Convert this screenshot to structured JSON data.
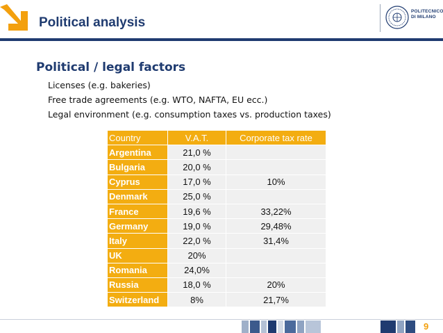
{
  "header": {
    "title": "Political analysis",
    "institution_line1": "POLITECNICO",
    "institution_line2": "DI MILANO"
  },
  "content": {
    "section_title": "Political / legal factors",
    "bullets": [
      "Licenses (e.g. bakeries)",
      "Free trade agreements (e.g. WTO, NAFTA, EU ecc.)",
      "Legal environment (e.g. consumption taxes vs. production taxes)"
    ]
  },
  "table": {
    "headers": [
      "Country",
      "V.A.T.",
      "Corporate tax rate"
    ],
    "rows": [
      {
        "country": "Argentina",
        "vat": "21,0 %",
        "corporate": ""
      },
      {
        "country": "Bulgaria",
        "vat": "20,0 %",
        "corporate": ""
      },
      {
        "country": "Cyprus",
        "vat": "17,0 %",
        "corporate": "10%"
      },
      {
        "country": "Denmark",
        "vat": "25,0 %",
        "corporate": ""
      },
      {
        "country": "France",
        "vat": "19,6 %",
        "corporate": "33,22%"
      },
      {
        "country": "Germany",
        "vat": "19,0 %",
        "corporate": "29,48%"
      },
      {
        "country": "Italy",
        "vat": "22,0 %",
        "corporate": "31,4%"
      },
      {
        "country": "UK",
        "vat": "20%",
        "corporate": ""
      },
      {
        "country": "Romania",
        "vat": "24,0%",
        "corporate": ""
      },
      {
        "country": "Russia",
        "vat": "18,0 %",
        "corporate": "20%"
      },
      {
        "country": "Switzerland",
        "vat": "8%",
        "corporate": "21,7%"
      }
    ]
  },
  "footer": {
    "page_number": "9"
  },
  "colors": {
    "accent": "#f3ad11",
    "navy": "#1f3b70",
    "cell_bg": "#f0f0f0"
  }
}
